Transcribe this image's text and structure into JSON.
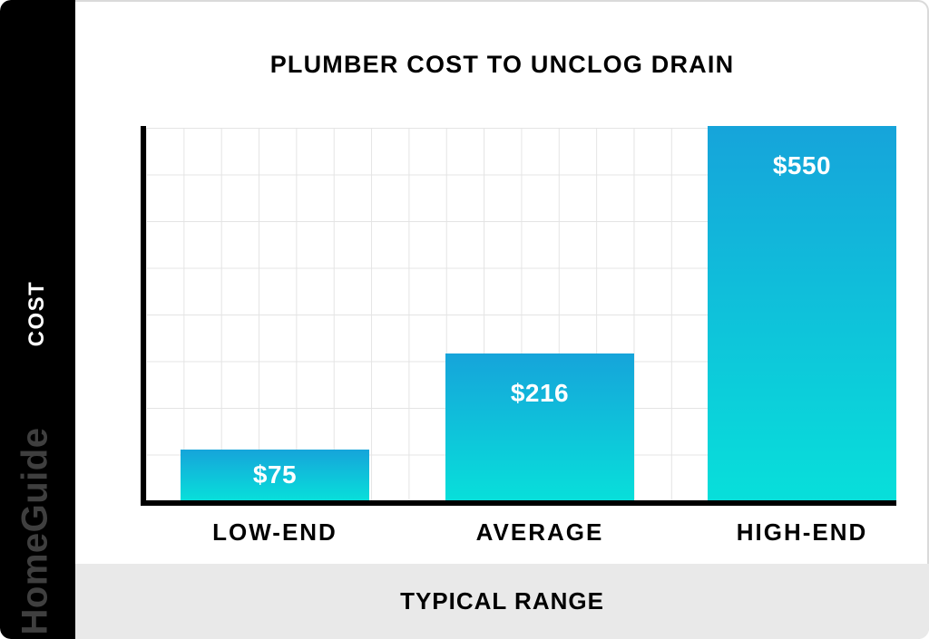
{
  "brand": {
    "watermark": "HomeGuide"
  },
  "chart_data": {
    "type": "bar",
    "title": "PLUMBER COST TO UNCLOG DRAIN",
    "categories": [
      "LOW-END",
      "AVERAGE",
      "HIGH-END"
    ],
    "values": [
      75,
      216,
      550
    ],
    "value_labels": [
      "$75",
      "$216",
      "$550"
    ],
    "xlabel": "TYPICAL RANGE",
    "ylabel": "COST",
    "ylim": [
      0,
      560
    ],
    "grid": true,
    "legend": "none",
    "colors": {
      "bar_gradient_top": "#16a4da",
      "bar_gradient_bottom": "#08dfda",
      "axis": "#000000",
      "gridline": "#e4e4e4",
      "sidebar_bg": "#000000",
      "footer_bg": "#e9e9e9",
      "value_text": "#ffffff",
      "watermark_text": "#3f3f3f"
    }
  }
}
